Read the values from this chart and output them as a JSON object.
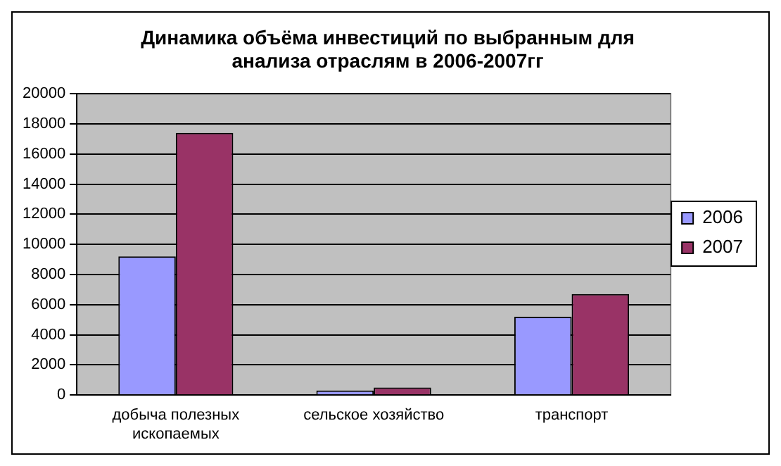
{
  "chart_data": {
    "type": "bar",
    "title": "Динамика объёма инвестиций по выбранным для анализа отраслям в 2006-2007гг",
    "categories": [
      "добыча полезных ископаемых",
      "сельское хозяйство",
      "транспорт"
    ],
    "series": [
      {
        "name": "2006",
        "color": "#9999ff",
        "values": [
          9200,
          300,
          5200
        ]
      },
      {
        "name": "2007",
        "color": "#993366",
        "values": [
          17400,
          500,
          6700
        ]
      }
    ],
    "ylim": [
      0,
      20000
    ],
    "yticks": [
      0,
      2000,
      4000,
      6000,
      8000,
      10000,
      12000,
      14000,
      16000,
      18000,
      20000
    ],
    "grid": "y",
    "legend": "right"
  }
}
